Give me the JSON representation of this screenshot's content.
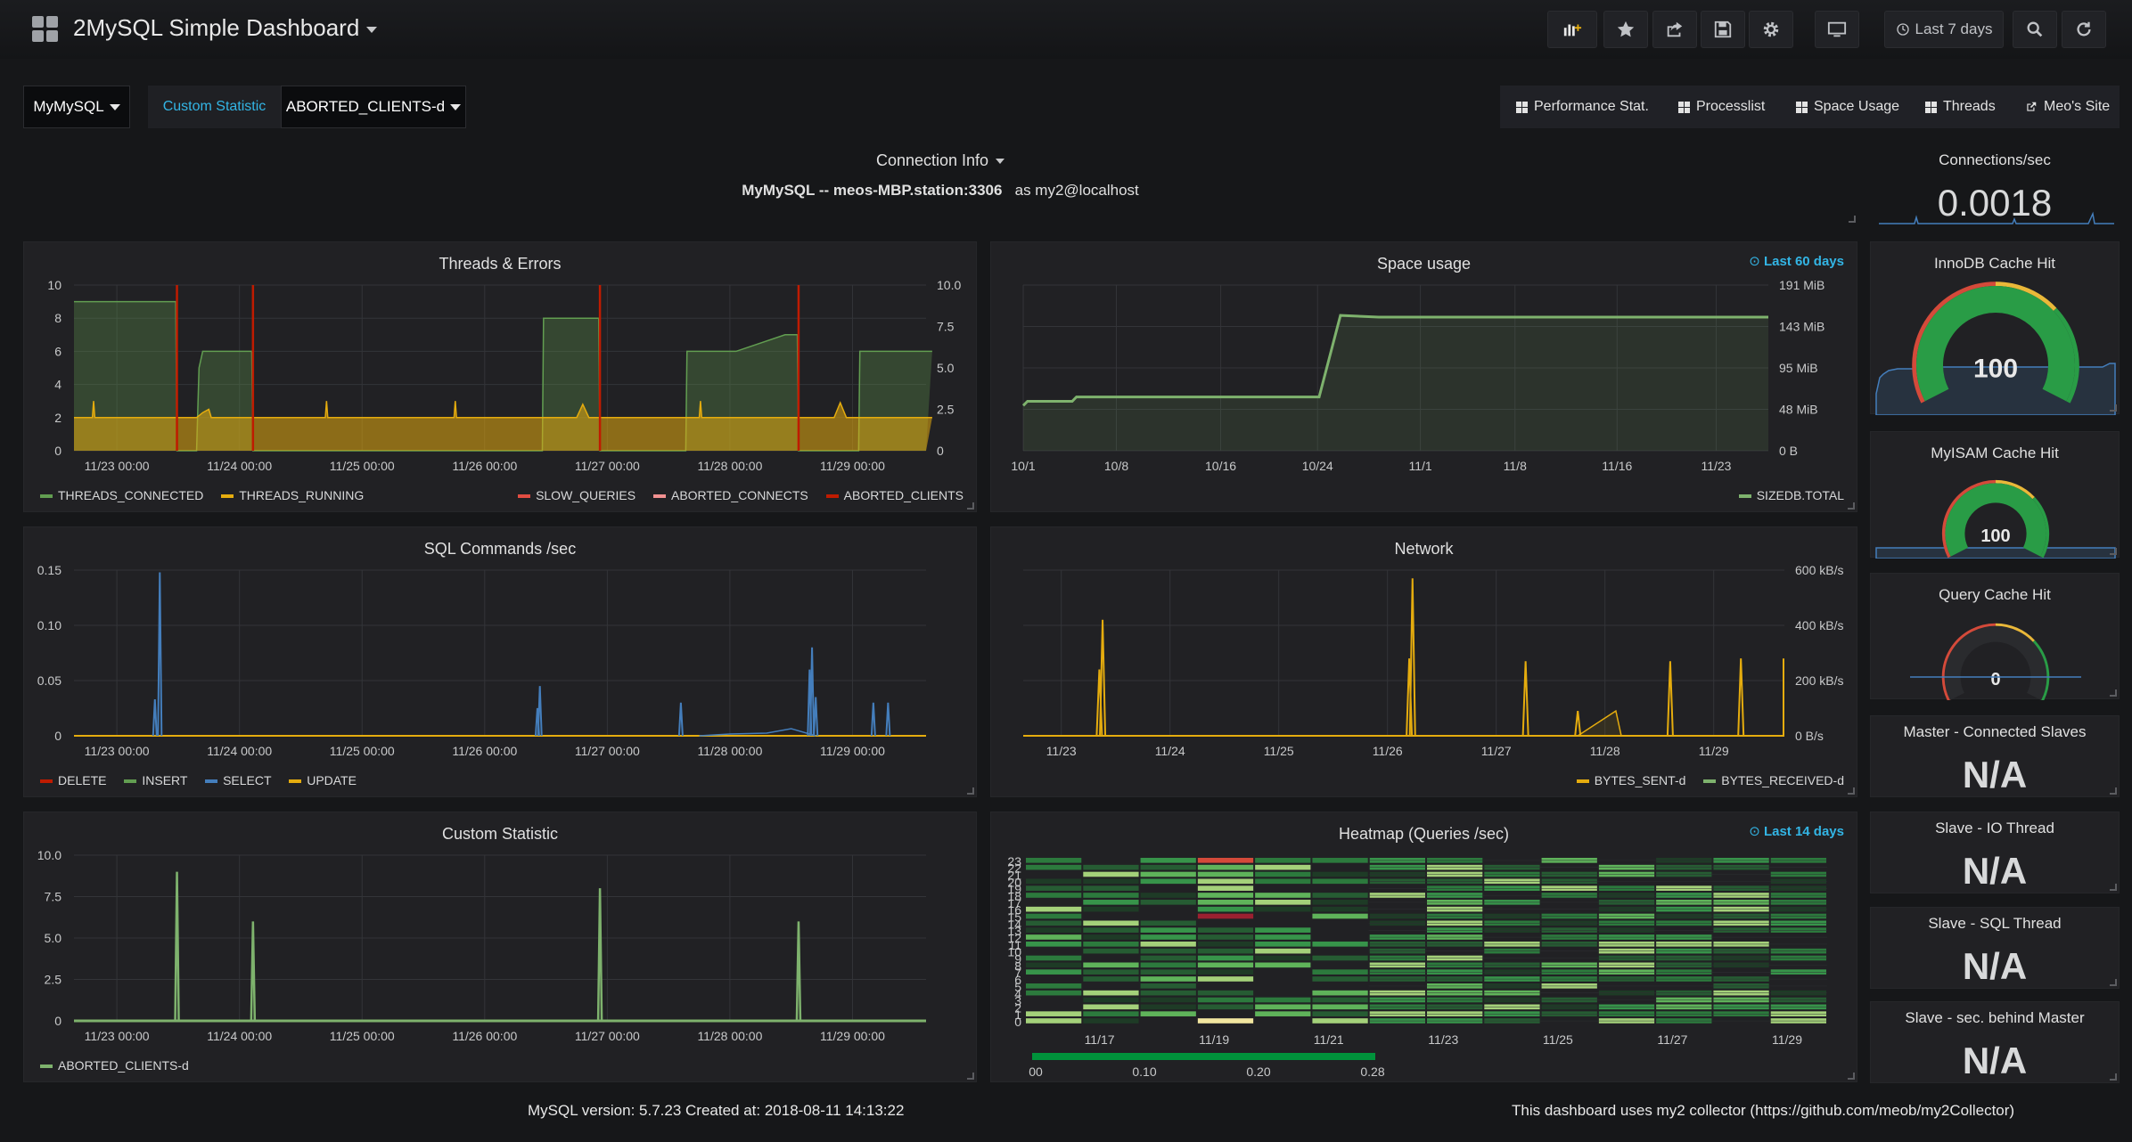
{
  "header": {
    "title": "2MySQL Simple Dashboard",
    "time_range": "Last 7 days"
  },
  "variables": {
    "server": "MyMySQL",
    "custom_label": "Custom Statistic",
    "custom_value": "ABORTED_CLIENTS-d"
  },
  "links": [
    "Performance Stat.",
    "Processlist",
    "Space Usage",
    "Threads",
    "Meo's Site"
  ],
  "connection_info": {
    "title": "Connection Info",
    "server_prefix": "MyMySQL -- ",
    "host": "meos-MBP.station:3306",
    "user_suffix": "as my2@localhost"
  },
  "stats": {
    "connections": {
      "title": "Connections/sec",
      "value": "0.0018"
    },
    "innodb": {
      "title": "InnoDB Cache Hit",
      "value": 100
    },
    "myisam": {
      "title": "MyISAM Cache Hit",
      "value": 100
    },
    "query": {
      "title": "Query Cache Hit",
      "value": 0
    },
    "master": {
      "title": "Master - Connected Slaves",
      "value": "N/A"
    },
    "io": {
      "title": "Slave - IO Thread",
      "value": "N/A"
    },
    "sql": {
      "title": "Slave - SQL Thread",
      "value": "N/A"
    },
    "behind": {
      "title": "Slave - sec. behind Master",
      "value": "N/A"
    }
  },
  "colors": {
    "green": "#629e51",
    "yellow": "#e5ac0e",
    "red": "#bf1b00",
    "pink": "#e24d42",
    "blue": "#447ebc",
    "light_green": "#7eb26d",
    "gauge_green": "#299c46",
    "gauge_red": "#d44a3a",
    "accent_blue": "#33b5e5"
  },
  "footer": {
    "version": "MySQL version: 5.7.23 Created at: 2018-08-11 14:13:22",
    "collector": "This dashboard uses my2 collector (https://github.com/meob/my2Collector)"
  },
  "chart_data": [
    {
      "id": "threads",
      "type": "area",
      "title": "Threads & Errors",
      "x": [
        "11/23 00:00",
        "11/24 00:00",
        "11/25 00:00",
        "11/26 00:00",
        "11/27 00:00",
        "11/28 00:00",
        "11/29 00:00"
      ],
      "yticks_left": [
        "0",
        "2",
        "4",
        "6",
        "8",
        "10"
      ],
      "yticks_right": [
        "0",
        "2.5",
        "5.0",
        "7.5",
        "10.0"
      ],
      "ylim": [
        0,
        10
      ],
      "legend_left": [
        "THREADS_CONNECTED",
        "THREADS_RUNNING"
      ],
      "legend_right": [
        "SLOW_QUERIES",
        "ABORTED_CONNECTS",
        "ABORTED_CLIENTS"
      ],
      "series": [
        {
          "name": "THREADS_CONNECTED",
          "points": [
            [
              0,
              9
            ],
            [
              0.83,
              9
            ],
            [
              0.84,
              0
            ],
            [
              1.0,
              0
            ],
            [
              1.02,
              5
            ],
            [
              1.05,
              6
            ],
            [
              1.45,
              6
            ],
            [
              1.46,
              0
            ],
            [
              3.82,
              0
            ],
            [
              3.83,
              8
            ],
            [
              4.28,
              8
            ],
            [
              4.29,
              0
            ],
            [
              4.99,
              0
            ],
            [
              5.0,
              6
            ],
            [
              5.4,
              6
            ],
            [
              5.8,
              7
            ],
            [
              5.9,
              7
            ],
            [
              5.91,
              0
            ],
            [
              6.4,
              0
            ],
            [
              6.41,
              6
            ],
            [
              7.0,
              6
            ]
          ]
        },
        {
          "name": "THREADS_RUNNING",
          "points": [
            [
              0,
              2
            ],
            [
              0.15,
              2
            ],
            [
              0.16,
              3
            ],
            [
              0.17,
              2
            ],
            [
              1.0,
              2
            ],
            [
              1.05,
              2.3
            ],
            [
              1.1,
              2.5
            ],
            [
              1.12,
              2
            ],
            [
              2.05,
              2
            ],
            [
              2.06,
              3
            ],
            [
              2.07,
              2
            ],
            [
              3.1,
              2
            ],
            [
              3.11,
              3
            ],
            [
              3.12,
              2
            ],
            [
              4.1,
              2
            ],
            [
              4.15,
              2.8
            ],
            [
              4.2,
              2
            ],
            [
              5.1,
              2
            ],
            [
              5.11,
              3
            ],
            [
              5.12,
              2
            ],
            [
              6.2,
              2
            ],
            [
              6.25,
              2.9
            ],
            [
              6.3,
              2
            ],
            [
              7.0,
              2
            ]
          ]
        },
        {
          "name": "ABORTED_CLIENTS",
          "spikes": [
            0.84,
            1.46,
            4.29,
            5.91
          ]
        }
      ]
    },
    {
      "id": "space",
      "type": "line",
      "title": "Space usage",
      "override": "Last 60 days",
      "x": [
        "10/1",
        "10/8",
        "10/16",
        "10/24",
        "11/1",
        "11/8",
        "11/16",
        "11/23"
      ],
      "yticks_right": [
        "0 B",
        "48 MiB",
        "95 MiB",
        "143 MiB",
        "191 MiB"
      ],
      "ylim": [
        0,
        191
      ],
      "legend": [
        "SIZEDB.TOTAL"
      ],
      "points": [
        [
          0,
          52
        ],
        [
          0.4,
          57
        ],
        [
          4.6,
          57
        ],
        [
          5.0,
          62
        ],
        [
          27.8,
          62
        ],
        [
          29.8,
          156
        ],
        [
          33.4,
          154
        ],
        [
          70,
          154
        ]
      ]
    },
    {
      "id": "sql",
      "type": "line",
      "title": "SQL Commands /sec",
      "x": [
        "11/23 00:00",
        "11/24 00:00",
        "11/25 00:00",
        "11/26 00:00",
        "11/27 00:00",
        "11/28 00:00",
        "11/29 00:00"
      ],
      "yticks_left": [
        "0",
        "0.05",
        "0.10",
        "0.15"
      ],
      "ylim": [
        0,
        0.15
      ],
      "legend": [
        "DELETE",
        "INSERT",
        "SELECT",
        "UPDATE"
      ],
      "select_spikes": [
        [
          0.66,
          0.033
        ],
        [
          0.7,
          0.148
        ],
        [
          3.8,
          0.045
        ],
        [
          3.78,
          0.025
        ],
        [
          4.95,
          0.03
        ],
        [
          6.0,
          0.06
        ],
        [
          6.02,
          0.08
        ],
        [
          6.05,
          0.035
        ],
        [
          6.52,
          0.03
        ],
        [
          6.64,
          0.03
        ]
      ]
    },
    {
      "id": "network",
      "type": "line",
      "title": "Network",
      "x": [
        "11/23",
        "11/24",
        "11/25",
        "11/26",
        "11/27",
        "11/28",
        "11/29"
      ],
      "yticks_right": [
        "0 B/s",
        "200 kB/s",
        "400 kB/s",
        "600 kB/s"
      ],
      "ylim": [
        0,
        600
      ],
      "legend": [
        "BYTES_SENT-d",
        "BYTES_RECEIVED-d"
      ],
      "sent_spikes": [
        [
          0.7,
          240
        ],
        [
          0.73,
          420
        ],
        [
          3.55,
          280
        ],
        [
          3.58,
          570
        ],
        [
          4.62,
          270
        ],
        [
          5.1,
          90
        ],
        [
          5.95,
          270
        ],
        [
          6.6,
          280
        ]
      ]
    },
    {
      "id": "custom",
      "type": "line",
      "title": "Custom Statistic",
      "x": [
        "11/23 00:00",
        "11/24 00:00",
        "11/25 00:00",
        "11/26 00:00",
        "11/27 00:00",
        "11/28 00:00",
        "11/29 00:00"
      ],
      "yticks_left": [
        "0",
        "2.5",
        "5.0",
        "7.5",
        "10.0"
      ],
      "ylim": [
        0,
        10
      ],
      "legend": [
        "ABORTED_CLIENTS-d"
      ],
      "spikes": [
        [
          0.84,
          9
        ],
        [
          1.46,
          6
        ],
        [
          4.29,
          8
        ],
        [
          5.91,
          6
        ]
      ]
    },
    {
      "id": "heatmap",
      "type": "heatmap",
      "title": "Heatmap (Queries /sec)",
      "override": "Last 14 days",
      "x": [
        "11/17",
        "11/19",
        "11/21",
        "11/23",
        "11/25",
        "11/27",
        "11/29"
      ],
      "yticks": [
        "0",
        "1",
        "2",
        "3",
        "4",
        "5",
        "6",
        "7",
        "8",
        "9",
        "10",
        "11",
        "12",
        "13",
        "14",
        "15",
        "16",
        "17",
        "18",
        "19",
        "20",
        "21",
        "22",
        "23"
      ],
      "scale_ticks": [
        "00",
        "0.10",
        "0.20",
        "0.28"
      ]
    }
  ]
}
